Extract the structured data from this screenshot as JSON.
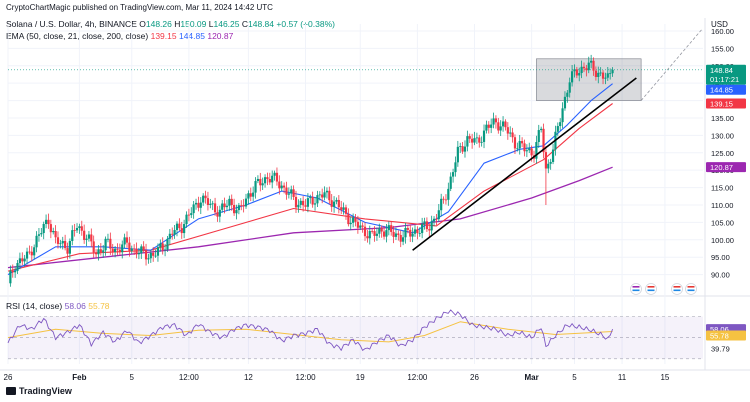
{
  "header": {
    "published": "CryptoChartMagic published on TradingView.com, Mar 11, 2024 14:42 UTC",
    "symbol": "Solana / U.S. Dollar, 4h, BINANCE",
    "ohlc": {
      "o_label": "O",
      "o": "148.26",
      "h_label": "H",
      "h": "150.09",
      "l_label": "L",
      "l": "146.25",
      "c_label": "C",
      "c": "148.84",
      "change": "+0.57 (+0.38%)"
    },
    "ema_label": "EMA (50, close, 21, close, 200, close)",
    "ema_values": [
      "139.15",
      "144.85",
      "120.87"
    ]
  },
  "footer": {
    "brand": "TradingView"
  },
  "colors": {
    "up": "#089981",
    "down": "#f23645",
    "ema21": "#2962ff",
    "ema50": "#f23645",
    "ema200": "#9c27b0",
    "rsi": "#7e57c2",
    "rsi_ma": "#f5c242",
    "trendline": "#000000",
    "grid": "#f0f3fa",
    "axis_text": "#131722"
  },
  "chart_data": [
    {
      "type": "line",
      "subtype": "candlestick_with_overlays",
      "title": "Solana / U.S. Dollar, 4h, BINANCE",
      "y_axis_label": "USD",
      "ylim": [
        85,
        162
      ],
      "y_ticks": [
        "90.00",
        "95.00",
        "100.00",
        "105.00",
        "110.00",
        "115.00",
        "120.00",
        "125.00",
        "130.00",
        "135.00",
        "140.00",
        "145.00",
        "150.00",
        "155.00",
        "160.00"
      ],
      "x_ticks": [
        "26",
        "Feb",
        "5",
        "12:00",
        "12",
        "12:00",
        "19",
        "12:00",
        "26",
        "Mar",
        "5",
        "11",
        "15"
      ],
      "price_labels": [
        {
          "value": 148.84,
          "text": "148.84",
          "sub": "01:17:21",
          "color": "#089981"
        },
        {
          "value": 144.85,
          "text": "144.85",
          "color": "#2962ff"
        },
        {
          "value": 139.15,
          "text": "139.15",
          "color": "#f23645"
        },
        {
          "value": 120.87,
          "text": "120.87",
          "color": "#9c27b0"
        }
      ],
      "close_series": [
        {
          "t": 0,
          "v": 87.5
        },
        {
          "t": 3,
          "v": 93
        },
        {
          "t": 8,
          "v": 95
        },
        {
          "t": 12,
          "v": 100
        },
        {
          "t": 17,
          "v": 106
        },
        {
          "t": 20,
          "v": 99.5
        },
        {
          "t": 25,
          "v": 98
        },
        {
          "t": 29,
          "v": 104
        },
        {
          "t": 33,
          "v": 101
        },
        {
          "t": 37,
          "v": 96
        },
        {
          "t": 41,
          "v": 99
        },
        {
          "t": 45,
          "v": 97
        },
        {
          "t": 50,
          "v": 99
        },
        {
          "t": 53,
          "v": 97
        },
        {
          "t": 57,
          "v": 96
        },
        {
          "t": 61,
          "v": 95.5
        },
        {
          "t": 65,
          "v": 98
        },
        {
          "t": 69,
          "v": 102
        },
        {
          "t": 73,
          "v": 104
        },
        {
          "t": 77,
          "v": 108
        },
        {
          "t": 81,
          "v": 112
        },
        {
          "t": 85,
          "v": 110
        },
        {
          "t": 89,
          "v": 108
        },
        {
          "t": 93,
          "v": 111
        },
        {
          "t": 97,
          "v": 108
        },
        {
          "t": 101,
          "v": 113
        },
        {
          "t": 105,
          "v": 116
        },
        {
          "t": 109,
          "v": 118
        },
        {
          "t": 113,
          "v": 117
        },
        {
          "t": 117,
          "v": 114
        },
        {
          "t": 121,
          "v": 111
        },
        {
          "t": 125,
          "v": 110
        },
        {
          "t": 129,
          "v": 112
        },
        {
          "t": 133,
          "v": 113
        },
        {
          "t": 137,
          "v": 111
        },
        {
          "t": 141,
          "v": 108
        },
        {
          "t": 145,
          "v": 105
        },
        {
          "t": 149,
          "v": 103
        },
        {
          "t": 153,
          "v": 101
        },
        {
          "t": 157,
          "v": 103
        },
        {
          "t": 161,
          "v": 102
        },
        {
          "t": 165,
          "v": 101
        },
        {
          "t": 169,
          "v": 102
        },
        {
          "t": 173,
          "v": 103
        },
        {
          "t": 177,
          "v": 104
        },
        {
          "t": 181,
          "v": 108
        },
        {
          "t": 185,
          "v": 115
        },
        {
          "t": 189,
          "v": 125
        },
        {
          "t": 193,
          "v": 129
        },
        {
          "t": 197,
          "v": 128
        },
        {
          "t": 201,
          "v": 132
        },
        {
          "t": 205,
          "v": 134
        },
        {
          "t": 209,
          "v": 132
        },
        {
          "t": 213,
          "v": 128
        },
        {
          "t": 217,
          "v": 126
        },
        {
          "t": 221,
          "v": 125
        },
        {
          "t": 224,
          "v": 132
        },
        {
          "t": 226,
          "v": 120
        },
        {
          "t": 229,
          "v": 126
        },
        {
          "t": 233,
          "v": 138
        },
        {
          "t": 236,
          "v": 146
        },
        {
          "t": 240,
          "v": 149
        },
        {
          "t": 244,
          "v": 150
        },
        {
          "t": 248,
          "v": 148
        },
        {
          "t": 252,
          "v": 146
        },
        {
          "t": 254,
          "v": 148.84
        }
      ],
      "ema21_series": [
        {
          "t": 0,
          "v": 90
        },
        {
          "t": 20,
          "v": 98
        },
        {
          "t": 40,
          "v": 98
        },
        {
          "t": 60,
          "v": 97
        },
        {
          "t": 80,
          "v": 106
        },
        {
          "t": 100,
          "v": 110
        },
        {
          "t": 115,
          "v": 114
        },
        {
          "t": 130,
          "v": 112
        },
        {
          "t": 150,
          "v": 105
        },
        {
          "t": 170,
          "v": 102
        },
        {
          "t": 185,
          "v": 108
        },
        {
          "t": 200,
          "v": 122
        },
        {
          "t": 215,
          "v": 126
        },
        {
          "t": 225,
          "v": 127
        },
        {
          "t": 235,
          "v": 133
        },
        {
          "t": 245,
          "v": 140
        },
        {
          "t": 254,
          "v": 144.85
        }
      ],
      "ema50_series": [
        {
          "t": 0,
          "v": 91
        },
        {
          "t": 30,
          "v": 96
        },
        {
          "t": 60,
          "v": 97
        },
        {
          "t": 90,
          "v": 103
        },
        {
          "t": 120,
          "v": 109
        },
        {
          "t": 150,
          "v": 106
        },
        {
          "t": 180,
          "v": 104
        },
        {
          "t": 200,
          "v": 114
        },
        {
          "t": 225,
          "v": 123
        },
        {
          "t": 240,
          "v": 132
        },
        {
          "t": 254,
          "v": 139.15
        }
      ],
      "ema200_series": [
        {
          "t": 0,
          "v": 92
        },
        {
          "t": 40,
          "v": 95
        },
        {
          "t": 80,
          "v": 98
        },
        {
          "t": 120,
          "v": 102
        },
        {
          "t": 160,
          "v": 103.5
        },
        {
          "t": 190,
          "v": 106
        },
        {
          "t": 220,
          "v": 112
        },
        {
          "t": 240,
          "v": 117
        },
        {
          "t": 254,
          "v": 120.87
        }
      ],
      "trendline": {
        "from": {
          "t": 170,
          "v": 97
        },
        "to": {
          "t": 264,
          "v": 146.5
        }
      },
      "range_box": {
        "t_from": 222,
        "t_to": 266,
        "v_low": 140,
        "v_high": 152
      }
    },
    {
      "type": "line",
      "title": "RSI (14, close)",
      "legend_label": "RSI (14, close)",
      "legend_values": [
        "58.06",
        "55.78"
      ],
      "y_ticks": [
        "39.79",
        "59.92"
      ],
      "levels": [
        30,
        50,
        70
      ],
      "price_labels": [
        {
          "value": 58.06,
          "text": "58.06",
          "color": "#7e57c2"
        },
        {
          "value": 55.78,
          "text": "55.78",
          "color": "#f5c242"
        }
      ],
      "rsi_series": [
        {
          "t": 0,
          "v": 45
        },
        {
          "t": 5,
          "v": 62
        },
        {
          "t": 10,
          "v": 58
        },
        {
          "t": 15,
          "v": 68
        },
        {
          "t": 20,
          "v": 50
        },
        {
          "t": 25,
          "v": 55
        },
        {
          "t": 30,
          "v": 62
        },
        {
          "t": 35,
          "v": 44
        },
        {
          "t": 40,
          "v": 55
        },
        {
          "t": 45,
          "v": 46
        },
        {
          "t": 50,
          "v": 57
        },
        {
          "t": 55,
          "v": 45
        },
        {
          "t": 60,
          "v": 52
        },
        {
          "t": 65,
          "v": 60
        },
        {
          "t": 70,
          "v": 62
        },
        {
          "t": 75,
          "v": 52
        },
        {
          "t": 80,
          "v": 63
        },
        {
          "t": 85,
          "v": 55
        },
        {
          "t": 90,
          "v": 50
        },
        {
          "t": 95,
          "v": 58
        },
        {
          "t": 100,
          "v": 62
        },
        {
          "t": 105,
          "v": 60
        },
        {
          "t": 110,
          "v": 57
        },
        {
          "t": 115,
          "v": 47
        },
        {
          "t": 120,
          "v": 52
        },
        {
          "t": 125,
          "v": 54
        },
        {
          "t": 130,
          "v": 58
        },
        {
          "t": 135,
          "v": 44
        },
        {
          "t": 140,
          "v": 40
        },
        {
          "t": 145,
          "v": 48
        },
        {
          "t": 150,
          "v": 38
        },
        {
          "t": 155,
          "v": 46
        },
        {
          "t": 160,
          "v": 52
        },
        {
          "t": 165,
          "v": 42
        },
        {
          "t": 170,
          "v": 48
        },
        {
          "t": 175,
          "v": 60
        },
        {
          "t": 180,
          "v": 68
        },
        {
          "t": 185,
          "v": 75
        },
        {
          "t": 190,
          "v": 72
        },
        {
          "t": 195,
          "v": 62
        },
        {
          "t": 200,
          "v": 60
        },
        {
          "t": 205,
          "v": 58
        },
        {
          "t": 210,
          "v": 52
        },
        {
          "t": 215,
          "v": 55
        },
        {
          "t": 220,
          "v": 50
        },
        {
          "t": 224,
          "v": 60
        },
        {
          "t": 226,
          "v": 42
        },
        {
          "t": 230,
          "v": 52
        },
        {
          "t": 235,
          "v": 62
        },
        {
          "t": 240,
          "v": 60
        },
        {
          "t": 245,
          "v": 57
        },
        {
          "t": 250,
          "v": 52
        },
        {
          "t": 252,
          "v": 48
        },
        {
          "t": 254,
          "v": 58.06
        }
      ],
      "rsi_ma_series": [
        {
          "t": 0,
          "v": 50
        },
        {
          "t": 20,
          "v": 58
        },
        {
          "t": 40,
          "v": 54
        },
        {
          "t": 60,
          "v": 52
        },
        {
          "t": 80,
          "v": 57
        },
        {
          "t": 100,
          "v": 58
        },
        {
          "t": 120,
          "v": 53
        },
        {
          "t": 140,
          "v": 48
        },
        {
          "t": 160,
          "v": 46
        },
        {
          "t": 175,
          "v": 52
        },
        {
          "t": 190,
          "v": 65
        },
        {
          "t": 210,
          "v": 58
        },
        {
          "t": 230,
          "v": 53
        },
        {
          "t": 254,
          "v": 55.78
        }
      ]
    }
  ]
}
